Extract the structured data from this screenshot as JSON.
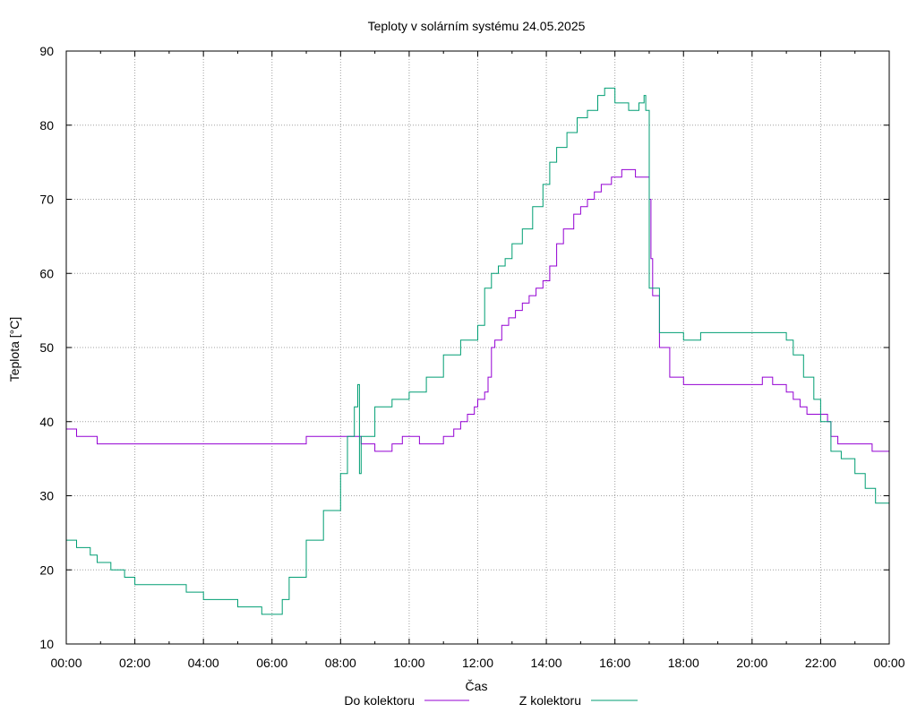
{
  "chart_data": {
    "type": "line",
    "title": "Teploty v solárním systému 24.05.2025",
    "xlabel": "Čas",
    "ylabel": "Teplota [°C]",
    "xlim": [
      0,
      24
    ],
    "ylim": [
      10,
      90
    ],
    "grid": true,
    "legend_position": "bottom",
    "x_ticks": [
      {
        "value": 0,
        "label": "00:00"
      },
      {
        "value": 2,
        "label": "02:00"
      },
      {
        "value": 4,
        "label": "04:00"
      },
      {
        "value": 6,
        "label": "06:00"
      },
      {
        "value": 8,
        "label": "08:00"
      },
      {
        "value": 10,
        "label": "10:00"
      },
      {
        "value": 12,
        "label": "12:00"
      },
      {
        "value": 14,
        "label": "14:00"
      },
      {
        "value": 16,
        "label": "16:00"
      },
      {
        "value": 18,
        "label": "18:00"
      },
      {
        "value": 20,
        "label": "20:00"
      },
      {
        "value": 22,
        "label": "22:00"
      },
      {
        "value": 24,
        "label": "00:00"
      }
    ],
    "y_ticks": [
      {
        "value": 10,
        "label": "10"
      },
      {
        "value": 20,
        "label": "20"
      },
      {
        "value": 30,
        "label": "30"
      },
      {
        "value": 40,
        "label": "40"
      },
      {
        "value": 50,
        "label": "50"
      },
      {
        "value": 60,
        "label": "60"
      },
      {
        "value": 70,
        "label": "70"
      },
      {
        "value": 80,
        "label": "80"
      },
      {
        "value": 90,
        "label": "90"
      }
    ],
    "series": [
      {
        "name": "Do kolektoru",
        "color": "#9400d3",
        "x": [
          0,
          0.3,
          0.3,
          0.9,
          0.9,
          1.3,
          1.3,
          7.0,
          7.0,
          8.0,
          8.0,
          8.6,
          8.6,
          9.0,
          9.0,
          9.2,
          9.5,
          9.8,
          10.3,
          10.5,
          10.6,
          11.0,
          11.3,
          11.5,
          11.7,
          11.9,
          12.0,
          12.1,
          12.2,
          12.3,
          12.4,
          12.5,
          12.7,
          12.9,
          13.1,
          13.3,
          13.5,
          13.7,
          13.9,
          14.1,
          14.3,
          14.5,
          14.8,
          15.0,
          15.2,
          15.4,
          15.6,
          15.9,
          16.2,
          16.6,
          16.9,
          16.95,
          17.0,
          17.05,
          17.1,
          17.3,
          17.6,
          18.0,
          18.2,
          18.5,
          18.8,
          19.2,
          19.6,
          20.0,
          20.3,
          20.6,
          20.8,
          21.0,
          21.2,
          21.4,
          21.6,
          21.8,
          22.0,
          22.2,
          22.3,
          22.5,
          23.0,
          23.4,
          23.5,
          24.0
        ],
        "values": [
          39,
          39,
          38,
          38,
          37,
          37,
          37,
          37,
          38,
          38,
          38,
          38,
          37,
          37,
          36,
          36,
          37,
          38,
          37,
          37,
          37,
          38,
          39,
          40,
          41,
          42,
          43,
          43,
          44,
          46,
          50,
          51,
          53,
          54,
          55,
          56,
          57,
          58,
          59,
          61,
          64,
          66,
          68,
          69,
          70,
          71,
          72,
          73,
          74,
          73,
          73,
          73,
          70,
          62,
          57,
          50,
          46,
          45,
          45,
          45,
          45,
          45,
          45,
          45,
          46,
          45,
          45,
          44,
          43,
          42,
          41,
          41,
          41,
          40,
          38,
          37,
          37,
          37,
          36,
          36
        ]
      },
      {
        "name": "Z kolektoru",
        "color": "#009e73",
        "x": [
          0,
          0.3,
          0.3,
          0.7,
          0.7,
          0.9,
          0.9,
          1.3,
          1.3,
          1.7,
          1.7,
          2.0,
          2.0,
          3.0,
          3.0,
          3.5,
          3.5,
          4.0,
          4.0,
          5.0,
          5.0,
          5.7,
          5.7,
          6.0,
          6.0,
          6.3,
          6.5,
          7.0,
          7.5,
          8.0,
          8.2,
          8.4,
          8.5,
          8.55,
          8.6,
          9.0,
          9.5,
          10.0,
          10.5,
          11.0,
          11.5,
          12.0,
          12.2,
          12.4,
          12.6,
          12.8,
          13.0,
          13.3,
          13.6,
          13.9,
          14.1,
          14.3,
          14.6,
          14.9,
          15.2,
          15.5,
          15.7,
          16.0,
          16.4,
          16.7,
          16.85,
          16.9,
          17.0,
          17.3,
          17.6,
          18.0,
          18.5,
          19.0,
          19.5,
          20.0,
          20.5,
          20.8,
          21.0,
          21.2,
          21.5,
          21.8,
          22.0,
          22.3,
          22.6,
          23.0,
          23.3,
          23.6,
          24.0
        ],
        "values": [
          24,
          24,
          23,
          23,
          22,
          22,
          21,
          21,
          20,
          20,
          19,
          19,
          18,
          18,
          18,
          18,
          17,
          17,
          16,
          16,
          15,
          15,
          14,
          14,
          14,
          16,
          19,
          24,
          28,
          33,
          38,
          42,
          45,
          33,
          38,
          42,
          43,
          44,
          46,
          49,
          51,
          53,
          58,
          60,
          61,
          62,
          64,
          66,
          69,
          72,
          75,
          77,
          79,
          81,
          82,
          84,
          85,
          83,
          82,
          83,
          84,
          82,
          58,
          52,
          52,
          51,
          52,
          52,
          52,
          52,
          52,
          52,
          51,
          49,
          46,
          43,
          40,
          36,
          35,
          33,
          31,
          29,
          27
        ]
      }
    ]
  }
}
